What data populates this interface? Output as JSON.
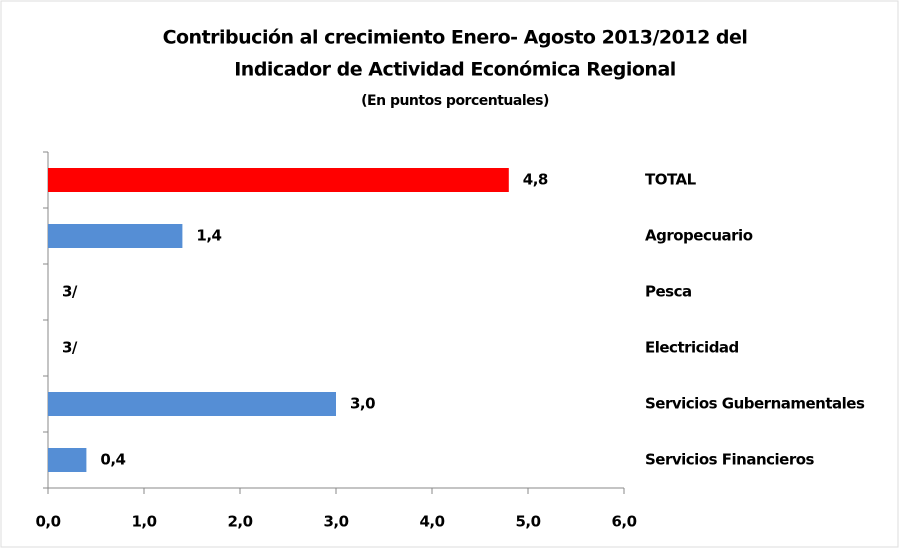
{
  "chart_data": {
    "type": "bar",
    "orientation": "horizontal",
    "title": [
      "Contribución al crecimiento Enero- Agosto 2013/2012 del",
      "Indicador de Actividad Económica Regional"
    ],
    "subtitle": "(En puntos porcentuales)",
    "categories": [
      "TOTAL",
      "Agropecuario",
      "Pesca",
      "Electricidad",
      "Servicios Gubernamentales",
      "Servicios Financieros"
    ],
    "values": [
      4.8,
      1.4,
      null,
      null,
      3.0,
      0.4
    ],
    "value_labels": [
      "4,8",
      "1,4",
      "3/",
      "3/",
      "3,0",
      "0,4"
    ],
    "colors": [
      "#ff0000",
      "#558ed5",
      "#558ed5",
      "#558ed5",
      "#558ed5",
      "#558ed5"
    ],
    "xlim": [
      0,
      6
    ],
    "xticks": [
      {
        "value": 0,
        "label": "0,0"
      },
      {
        "value": 1,
        "label": "1,0"
      },
      {
        "value": 2,
        "label": "2,0"
      },
      {
        "value": 3,
        "label": "3,0"
      },
      {
        "value": 4,
        "label": "4,0"
      },
      {
        "value": 5,
        "label": "5,0"
      },
      {
        "value": 6,
        "label": "6,0"
      }
    ],
    "grid": false
  }
}
